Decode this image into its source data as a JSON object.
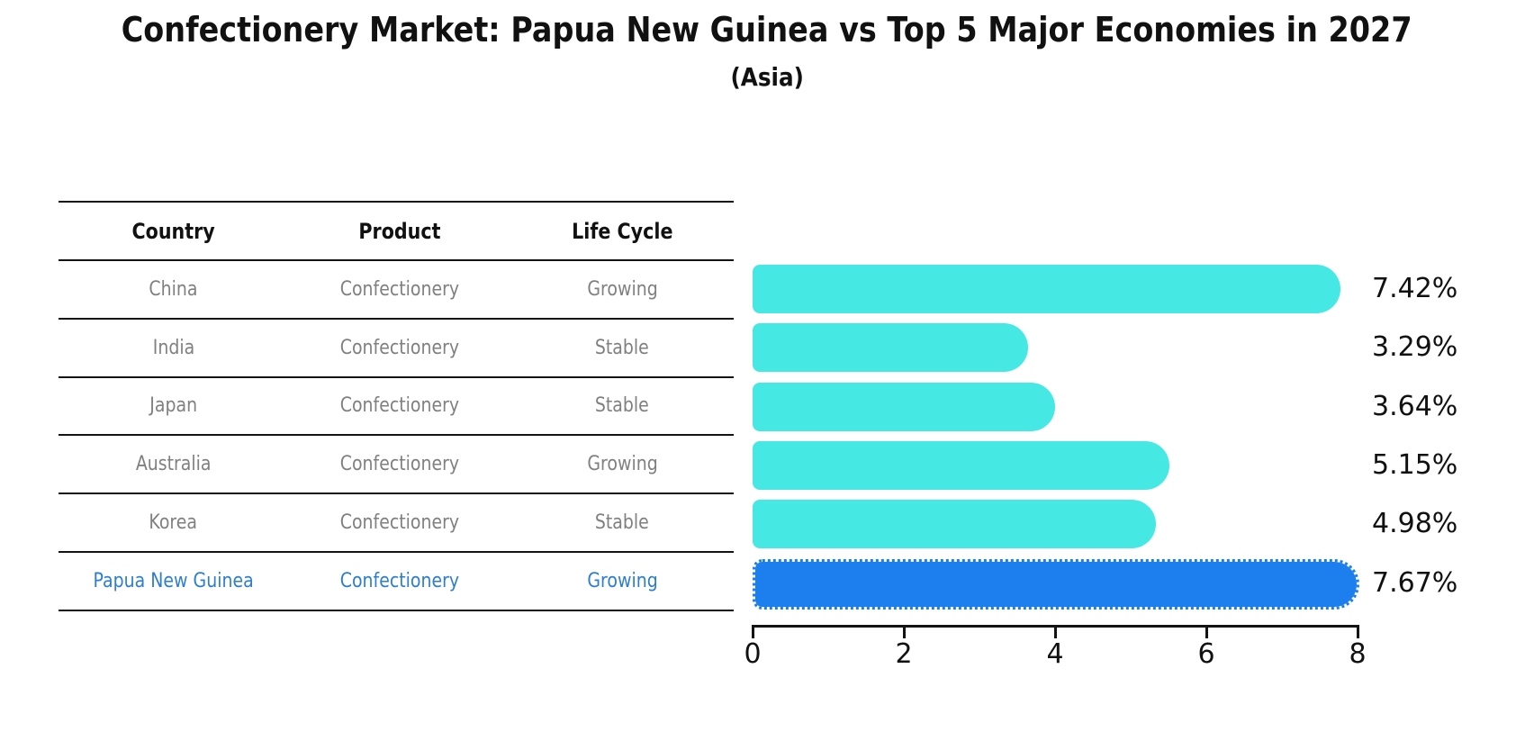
{
  "title": "Confectionery Market: Papua New Guinea vs Top 5 Major Economies in 2027",
  "subtitle": "(Asia)",
  "table": {
    "headers": [
      "Country",
      "Product",
      "Life Cycle"
    ],
    "rows": [
      {
        "country": "China",
        "product": "Confectionery",
        "life_cycle": "Growing",
        "highlight": false
      },
      {
        "country": "India",
        "product": "Confectionery",
        "life_cycle": "Stable",
        "highlight": false
      },
      {
        "country": "Japan",
        "product": "Confectionery",
        "life_cycle": "Stable",
        "highlight": false
      },
      {
        "country": "Australia",
        "product": "Confectionery",
        "life_cycle": "Growing",
        "highlight": false
      },
      {
        "country": "Korea",
        "product": "Confectionery",
        "life_cycle": "Stable",
        "highlight": false
      },
      {
        "country": "Papua New Guinea",
        "product": "Confectionery",
        "life_cycle": "Growing",
        "highlight": true
      }
    ]
  },
  "chart_data": {
    "type": "bar",
    "orientation": "horizontal",
    "title": "Confectionery Market: Papua New Guinea vs Top 5 Major Economies in 2027",
    "subtitle": "(Asia)",
    "categories": [
      "China",
      "India",
      "Japan",
      "Australia",
      "Korea",
      "Papua New Guinea"
    ],
    "values": [
      7.42,
      3.29,
      3.64,
      5.15,
      4.98,
      7.67
    ],
    "value_labels": [
      "7.42%",
      "3.29%",
      "3.64%",
      "5.15%",
      "4.98%",
      "7.67%"
    ],
    "x_ticks": [
      "0",
      "2",
      "4",
      "6",
      "8"
    ],
    "xlim": [
      0,
      8
    ],
    "highlight_index": 5,
    "bar_color": "#45e8e2",
    "highlight_bar_color": "#1c7fed",
    "highlight_text_color": "#2e7ecf",
    "grid": false,
    "legend": false
  }
}
